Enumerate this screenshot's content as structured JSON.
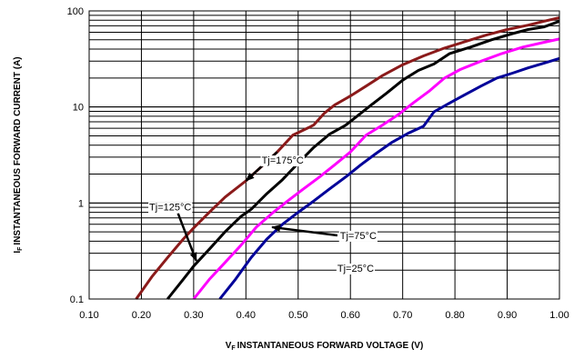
{
  "chart_data": {
    "type": "line",
    "xlabel": "INSTANTANEOUS FORWARD VOLTAGE (V)",
    "xlabel_prefix": "V",
    "xlabel_sub": "F",
    "ylabel": "INSTANTANEOUS FORWARD CURRENT (A)",
    "ylabel_prefix": "I",
    "ylabel_sub": "F",
    "xlim": [
      0.1,
      1.0
    ],
    "ylim": [
      0.1,
      100
    ],
    "y_scale": "log",
    "grid": true,
    "x_ticks": [
      "0.10",
      "0.20",
      "0.30",
      "0.40",
      "0.50",
      "0.60",
      "0.70",
      "0.80",
      "0.90",
      "1.00"
    ],
    "y_ticks": [
      "0.1",
      "1",
      "10",
      "100"
    ],
    "series": [
      {
        "name": "Tj=175°C",
        "color": "#8B1A1A",
        "points": [
          [
            0.19,
            0.1
          ],
          [
            0.22,
            0.17
          ],
          [
            0.25,
            0.27
          ],
          [
            0.28,
            0.42
          ],
          [
            0.3,
            0.55
          ],
          [
            0.33,
            0.8
          ],
          [
            0.36,
            1.15
          ],
          [
            0.4,
            1.7
          ],
          [
            0.43,
            2.4
          ],
          [
            0.46,
            3.4
          ],
          [
            0.49,
            5.1
          ],
          [
            0.5,
            5.4
          ],
          [
            0.52,
            6.1
          ],
          [
            0.53,
            6.5
          ],
          [
            0.55,
            8.6
          ],
          [
            0.57,
            10.5
          ],
          [
            0.6,
            13.0
          ],
          [
            0.63,
            16.5
          ],
          [
            0.66,
            21.0
          ],
          [
            0.7,
            27.5
          ],
          [
            0.74,
            34.0
          ],
          [
            0.78,
            41.0
          ],
          [
            0.82,
            48.0
          ],
          [
            0.86,
            56.0
          ],
          [
            0.9,
            64.0
          ],
          [
            0.94,
            71.0
          ],
          [
            0.97,
            78.0
          ],
          [
            1.0,
            85.0
          ]
        ]
      },
      {
        "name": "Tj=125°C",
        "color": "#000000",
        "points": [
          [
            0.25,
            0.1
          ],
          [
            0.28,
            0.16
          ],
          [
            0.3,
            0.22
          ],
          [
            0.33,
            0.33
          ],
          [
            0.36,
            0.5
          ],
          [
            0.39,
            0.72
          ],
          [
            0.41,
            0.86
          ],
          [
            0.44,
            1.25
          ],
          [
            0.47,
            1.75
          ],
          [
            0.5,
            2.6
          ],
          [
            0.53,
            3.8
          ],
          [
            0.56,
            5.2
          ],
          [
            0.59,
            6.4
          ],
          [
            0.61,
            7.8
          ],
          [
            0.64,
            10.5
          ],
          [
            0.67,
            14.0
          ],
          [
            0.7,
            19.0
          ],
          [
            0.73,
            24.0
          ],
          [
            0.76,
            28.0
          ],
          [
            0.79,
            36.0
          ],
          [
            0.83,
            42.0
          ],
          [
            0.87,
            50.0
          ],
          [
            0.91,
            58.0
          ],
          [
            0.94,
            64.0
          ],
          [
            0.97,
            68.0
          ],
          [
            1.0,
            78.0
          ]
        ]
      },
      {
        "name": "Tj=75°C",
        "color": "#FF00FF",
        "points": [
          [
            0.3,
            0.1
          ],
          [
            0.33,
            0.16
          ],
          [
            0.36,
            0.24
          ],
          [
            0.39,
            0.36
          ],
          [
            0.42,
            0.56
          ],
          [
            0.45,
            0.78
          ],
          [
            0.48,
            1.05
          ],
          [
            0.51,
            1.4
          ],
          [
            0.54,
            1.85
          ],
          [
            0.57,
            2.5
          ],
          [
            0.6,
            3.4
          ],
          [
            0.63,
            5.1
          ],
          [
            0.66,
            6.4
          ],
          [
            0.69,
            8.2
          ],
          [
            0.72,
            11.0
          ],
          [
            0.75,
            14.5
          ],
          [
            0.78,
            20.0
          ],
          [
            0.81,
            24.5
          ],
          [
            0.85,
            30.0
          ],
          [
            0.89,
            36.0
          ],
          [
            0.93,
            42.0
          ],
          [
            0.97,
            47.0
          ],
          [
            1.0,
            51.0
          ]
        ]
      },
      {
        "name": "Tj=25°C",
        "color": "#000099",
        "points": [
          [
            0.35,
            0.1
          ],
          [
            0.38,
            0.16
          ],
          [
            0.41,
            0.27
          ],
          [
            0.44,
            0.42
          ],
          [
            0.47,
            0.6
          ],
          [
            0.5,
            0.8
          ],
          [
            0.53,
            1.05
          ],
          [
            0.56,
            1.4
          ],
          [
            0.59,
            1.85
          ],
          [
            0.62,
            2.5
          ],
          [
            0.65,
            3.3
          ],
          [
            0.68,
            4.3
          ],
          [
            0.71,
            5.3
          ],
          [
            0.74,
            6.3
          ],
          [
            0.76,
            8.9
          ],
          [
            0.79,
            11.0
          ],
          [
            0.82,
            13.5
          ],
          [
            0.85,
            16.5
          ],
          [
            0.88,
            20.0
          ],
          [
            0.91,
            22.5
          ],
          [
            0.94,
            25.5
          ],
          [
            0.97,
            28.5
          ],
          [
            1.0,
            32.0
          ]
        ]
      }
    ],
    "annotations": [
      {
        "label": "Tj=175°C",
        "text_at": [
          0.43,
          2.8
        ],
        "arrow_from": [
          0.46,
          3.4
        ],
        "arrow_to": [
          0.4,
          1.7
        ]
      },
      {
        "label": "Tj=125°C",
        "text_at": [
          0.215,
          0.91
        ],
        "arrow_from": [
          0.27,
          0.78
        ],
        "arrow_to": [
          0.305,
          0.25
        ]
      },
      {
        "label": "Tj=75°C",
        "text_at": [
          0.58,
          0.46
        ],
        "arrow_from": [
          0.575,
          0.46
        ],
        "arrow_to": [
          0.45,
          0.56
        ]
      },
      {
        "label": "Tj=25°C",
        "text_at": [
          0.575,
          0.21
        ]
      }
    ]
  }
}
